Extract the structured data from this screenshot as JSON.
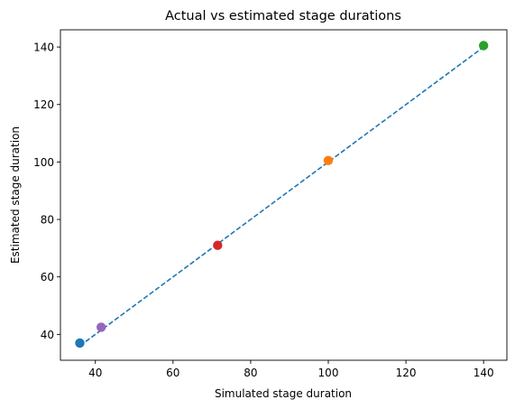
{
  "chart_data": {
    "type": "scatter",
    "title": "Actual vs estimated stage durations",
    "xlabel": "Simulated stage duration",
    "ylabel": "Estimated stage duration",
    "xlim": [
      31,
      146
    ],
    "ylim": [
      31,
      146
    ],
    "xticks": [
      40,
      60,
      80,
      100,
      120,
      140
    ],
    "yticks": [
      40,
      60,
      80,
      100,
      120,
      140
    ],
    "grid": false,
    "legend": "none",
    "points": [
      {
        "x": 36.0,
        "y": 37.0,
        "color": "#1f77b4"
      },
      {
        "x": 100.0,
        "y": 100.5,
        "color": "#ff7f0e"
      },
      {
        "x": 140.0,
        "y": 140.5,
        "color": "#2ca02c"
      },
      {
        "x": 71.5,
        "y": 71.0,
        "color": "#d62728"
      },
      {
        "x": 41.5,
        "y": 42.5,
        "color": "#9467bd"
      }
    ],
    "reference_line": {
      "x": [
        36,
        140
      ],
      "y": [
        36,
        140
      ],
      "style": "dashed",
      "color": "#1f77b4"
    }
  }
}
